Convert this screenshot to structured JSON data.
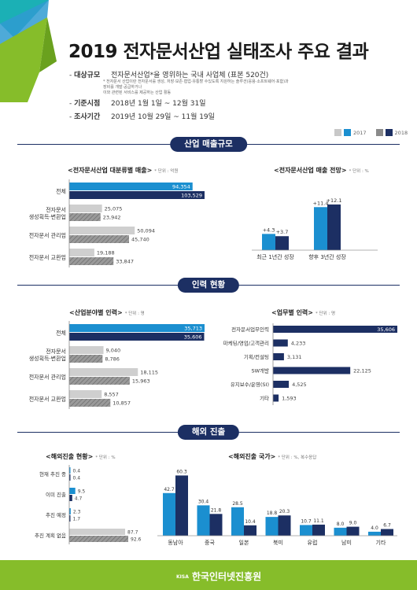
{
  "header": {
    "title": "2019 전자문서산업 실태조사 주요 결과",
    "rows": [
      {
        "key": "대상규모",
        "value": "전자문서산업*을 영위하는 국내 사업체 (표본 520건)"
      },
      {
        "key": "기준시점",
        "value": "2018년 1월 1일 ~ 12월 31일"
      },
      {
        "key": "조사기간",
        "value": "2019년 10월 29일 ~ 11월 19일"
      }
    ],
    "note1": "* 전자문서 산업이란 전자문서를 생성, 저장·보존·협업·유통할 수있도록 지원하는 솔루션(응용·소프트웨어·포함)과 장비를 개발·공급하거나",
    "note2": "이와 관련된 서비스를 제공하는 산업 활동"
  },
  "legend": {
    "y2017": "2017",
    "y2018": "2018",
    "color2017": "#1b8fd0",
    "color2018": "#1c2f63",
    "colorGray1": "#c8c8c8",
    "colorGray2": "#8a8a8a"
  },
  "sections": {
    "s1": "산업 매출규모",
    "s2": "인력 현황",
    "s3": "해외 진출"
  },
  "chart_data": [
    {
      "type": "bar",
      "title": "<전자문서산업 대분류별 매출>",
      "unit": "* 단위 : 억원",
      "categories": [
        "전체",
        "전자문서\n생성획득·변환업",
        "전자문서 관리업",
        "전자문서 교환업"
      ],
      "series": [
        {
          "name": "2017",
          "values": [
            94354,
            25075,
            50094,
            19188
          ]
        },
        {
          "name": "2018",
          "values": [
            103529,
            23942,
            45740,
            33847
          ]
        }
      ],
      "labels": [
        [
          "94,354",
          "103,529"
        ],
        [
          "25,075",
          "23,942"
        ],
        [
          "50,094",
          "45,740"
        ],
        [
          "19,188",
          "33,847"
        ]
      ]
    },
    {
      "type": "bar",
      "title": "<전자문서산업 매출 전망>",
      "unit": "* 단위 : %",
      "categories": [
        "최근 1년간 성장",
        "향후 3년간 성장"
      ],
      "series": [
        {
          "name": "2017",
          "values": [
            4.3,
            11.4
          ]
        },
        {
          "name": "2018",
          "values": [
            3.7,
            12.1
          ]
        }
      ],
      "labels": [
        [
          "+4.3",
          "+3.7"
        ],
        [
          "+11.4",
          "+12.1"
        ]
      ]
    },
    {
      "type": "bar",
      "title": "<산업분야별 인력>",
      "unit": "* 단위 : 명",
      "categories": [
        "전체",
        "전자문서\n생성획득·변환업",
        "전자문서 관리업",
        "전자문서 교환업"
      ],
      "series": [
        {
          "name": "2017",
          "values": [
            35713,
            9040,
            18115,
            8557
          ]
        },
        {
          "name": "2018",
          "values": [
            35606,
            8786,
            15963,
            10857
          ]
        }
      ],
      "labels": [
        [
          "35,713",
          "35,606"
        ],
        [
          "9,040",
          "8,786"
        ],
        [
          "18,115",
          "15,963"
        ],
        [
          "8,557",
          "10,857"
        ]
      ]
    },
    {
      "type": "bar",
      "title": "<업무별 인력>",
      "unit": "* 단위 : 명",
      "categories": [
        "전자문서업무인력",
        "마케팅/영업/고객관리",
        "기획/컨설팅",
        "SW개발",
        "유지보수/운영(SI)",
        "기타"
      ],
      "values": [
        35606,
        4233,
        3131,
        22125,
        4525,
        1593
      ],
      "labels": [
        "35,606",
        "4,233",
        "3,131",
        "22,125",
        "4,525",
        "1,593"
      ]
    },
    {
      "type": "bar",
      "title": "<해외진출 현황>",
      "unit": "* 단위 : %",
      "categories": [
        "현재 추진 중",
        "이미 진출",
        "추진 예정",
        "추진 계획 없음"
      ],
      "series": [
        {
          "name": "2017",
          "values": [
            0.4,
            9.5,
            2.3,
            87.7
          ]
        },
        {
          "name": "2018",
          "values": [
            0.4,
            4.7,
            1.7,
            92.6
          ]
        }
      ],
      "labels": [
        [
          "0.4",
          "0.4"
        ],
        [
          "9.5",
          "4.7"
        ],
        [
          "2.3",
          "1.7"
        ],
        [
          "87.7",
          "92.6"
        ]
      ]
    },
    {
      "type": "bar",
      "title": "<해외진출 국가>",
      "unit": "* 단위 : %, 복수응답",
      "categories": [
        "동남아",
        "중국",
        "일본",
        "북미",
        "유럽",
        "남미",
        "기타"
      ],
      "series": [
        {
          "name": "2017",
          "values": [
            42.7,
            30.4,
            28.5,
            18.8,
            10.7,
            8.0,
            4.0
          ]
        },
        {
          "name": "2018",
          "values": [
            60.3,
            21.8,
            10.4,
            20.3,
            11.1,
            9.0,
            6.7
          ]
        }
      ],
      "labels": [
        [
          "42.7",
          "60.3"
        ],
        [
          "30.4",
          "21.8"
        ],
        [
          "28.5",
          "10.4"
        ],
        [
          "18.8",
          "20.3"
        ],
        [
          "10.7",
          "11.1"
        ],
        [
          "8.0",
          "9.0"
        ],
        [
          "4.0",
          "6.7"
        ]
      ]
    }
  ],
  "footer": {
    "kisa": "KISA",
    "org": "한국인터넷진흥원"
  }
}
